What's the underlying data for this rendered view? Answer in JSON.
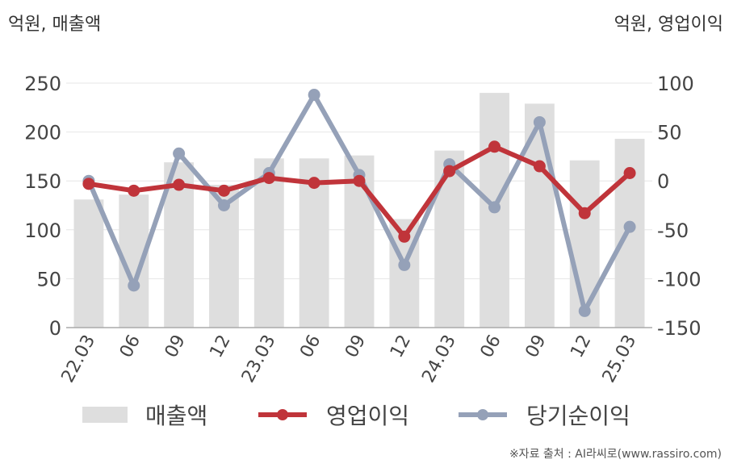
{
  "units": {
    "left": "억원, 매출액",
    "right": "억원, 영업이익"
  },
  "source": "※자료 출처 : AI라씨로(www.rassiro.com)",
  "colors": {
    "bar": "#dedede",
    "op": "#c0343a",
    "net": "#95a1b8",
    "grid": "#e6e6e6",
    "axis": "#aaaaaa"
  },
  "chart_data": {
    "type": "bar",
    "categories": [
      "22.03",
      "06",
      "09",
      "12",
      "23.03",
      "06",
      "09",
      "12",
      "24.03",
      "06",
      "09",
      "12",
      "25.03"
    ],
    "left_axis": {
      "ylim": [
        0,
        250
      ],
      "ticks": [
        0,
        50,
        100,
        150,
        200,
        250
      ]
    },
    "right_axis": {
      "ylim": [
        -150,
        100
      ],
      "ticks": [
        -150,
        -100,
        -50,
        0,
        50,
        100
      ]
    },
    "grid": true,
    "legend_position": "bottom",
    "series": [
      {
        "name": "매출액",
        "type": "bar",
        "axis": "left",
        "values": [
          131,
          136,
          169,
          146,
          173,
          173,
          176,
          111,
          181,
          240,
          229,
          171,
          193
        ]
      },
      {
        "name": "영업이익",
        "type": "line",
        "axis": "right",
        "values": [
          -3,
          -10,
          -4,
          -10,
          3,
          -2,
          0,
          -57,
          10,
          35,
          15,
          -33,
          8
        ]
      },
      {
        "name": "당기순이익",
        "type": "line",
        "axis": "right",
        "values": [
          0,
          -107,
          28,
          -25,
          8,
          88,
          6,
          -86,
          17,
          -27,
          60,
          -133,
          -47
        ]
      }
    ]
  }
}
